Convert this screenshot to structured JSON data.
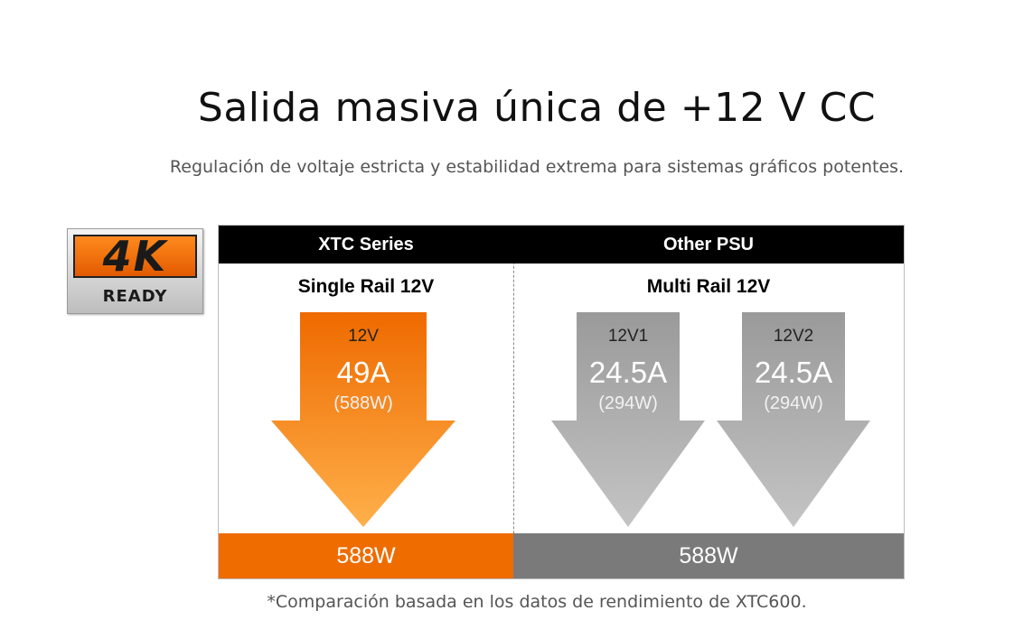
{
  "title": "Salida masiva única de +12 V CC",
  "subtitle": "Regulación de voltaje estricta y estabilidad extrema para sistemas gráficos potentes.",
  "badge": {
    "big": "4K",
    "small": "READY"
  },
  "columns": [
    {
      "header": "XTC Series",
      "subheader": "Single Rail 12V",
      "rails": [
        {
          "label": "12V",
          "amps": "49A",
          "watts": "(588W)",
          "color": "#f07a10"
        }
      ],
      "total": "588W"
    },
    {
      "header": "Other PSU",
      "subheader": "Multi Rail 12V",
      "rails": [
        {
          "label": "12V1",
          "amps": "24.5A",
          "watts": "(294W)",
          "color": "#9e9e9e"
        },
        {
          "label": "12V2",
          "amps": "24.5A",
          "watts": "(294W)",
          "color": "#9e9e9e"
        }
      ],
      "total": "588W"
    }
  ],
  "footnote": "*Comparación basada en los datos de rendimiento de XTC600.",
  "colors": {
    "xtc_orange": "#ee6c00",
    "other_gray": "#7a7a7a",
    "header_black": "#000000"
  }
}
